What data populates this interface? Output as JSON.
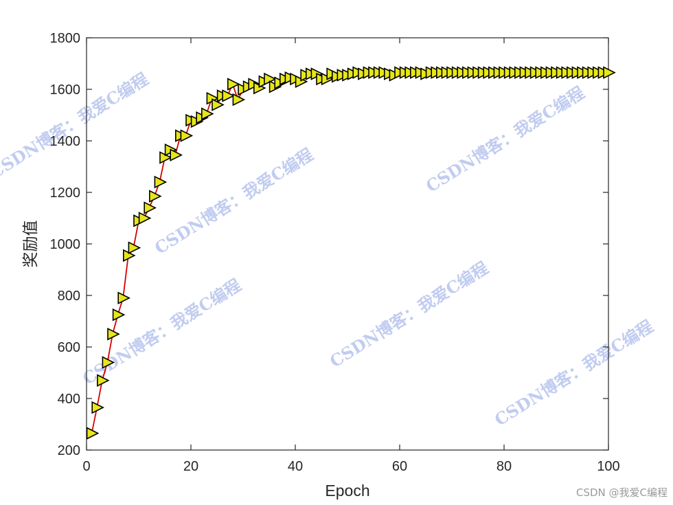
{
  "chart_data": {
    "type": "line",
    "xlabel": "Epoch",
    "ylabel": "奖励值",
    "xlim": [
      0,
      100
    ],
    "ylim": [
      200,
      1800
    ],
    "xticks": [
      0,
      20,
      40,
      60,
      80,
      100
    ],
    "yticks": [
      200,
      400,
      600,
      800,
      1000,
      1200,
      1400,
      1600,
      1800
    ],
    "grid": false,
    "line_color": "#d40000",
    "marker": "triangle-right",
    "marker_fill": "#e6e619",
    "marker_edge": "#000000",
    "x": [
      1,
      2,
      3,
      4,
      5,
      6,
      7,
      8,
      9,
      10,
      11,
      12,
      13,
      14,
      15,
      16,
      17,
      18,
      19,
      20,
      21,
      22,
      23,
      24,
      25,
      26,
      27,
      28,
      29,
      30,
      31,
      32,
      33,
      34,
      35,
      36,
      37,
      38,
      39,
      40,
      41,
      42,
      43,
      44,
      45,
      46,
      47,
      48,
      49,
      50,
      51,
      52,
      53,
      54,
      55,
      56,
      57,
      58,
      59,
      60,
      61,
      62,
      63,
      64,
      65,
      66,
      67,
      68,
      69,
      70,
      71,
      72,
      73,
      74,
      75,
      76,
      77,
      78,
      79,
      80,
      81,
      82,
      83,
      84,
      85,
      86,
      87,
      88,
      89,
      90,
      91,
      92,
      93,
      94,
      95,
      96,
      97,
      98,
      99,
      100
    ],
    "y": [
      265,
      365,
      470,
      540,
      650,
      725,
      790,
      955,
      985,
      1090,
      1100,
      1140,
      1185,
      1240,
      1335,
      1365,
      1345,
      1420,
      1420,
      1480,
      1475,
      1490,
      1505,
      1565,
      1540,
      1575,
      1575,
      1620,
      1560,
      1600,
      1610,
      1620,
      1605,
      1630,
      1640,
      1610,
      1625,
      1640,
      1645,
      1640,
      1630,
      1655,
      1660,
      1660,
      1640,
      1640,
      1660,
      1650,
      1655,
      1655,
      1660,
      1665,
      1660,
      1665,
      1665,
      1665,
      1665,
      1660,
      1655,
      1665,
      1665,
      1665,
      1665,
      1665,
      1660,
      1665,
      1665,
      1665,
      1665,
      1665,
      1665,
      1665,
      1665,
      1665,
      1665,
      1665,
      1665,
      1665,
      1665,
      1665,
      1665,
      1665,
      1665,
      1665,
      1665,
      1665,
      1665,
      1665,
      1665,
      1665,
      1665,
      1665,
      1665,
      1665,
      1665,
      1665,
      1665,
      1665,
      1665,
      1665
    ]
  },
  "watermark": {
    "text": "CSDN博客：我爱C编程",
    "color": "#8ea2e4"
  },
  "credit": {
    "text": "CSDN @我爱C编程"
  }
}
